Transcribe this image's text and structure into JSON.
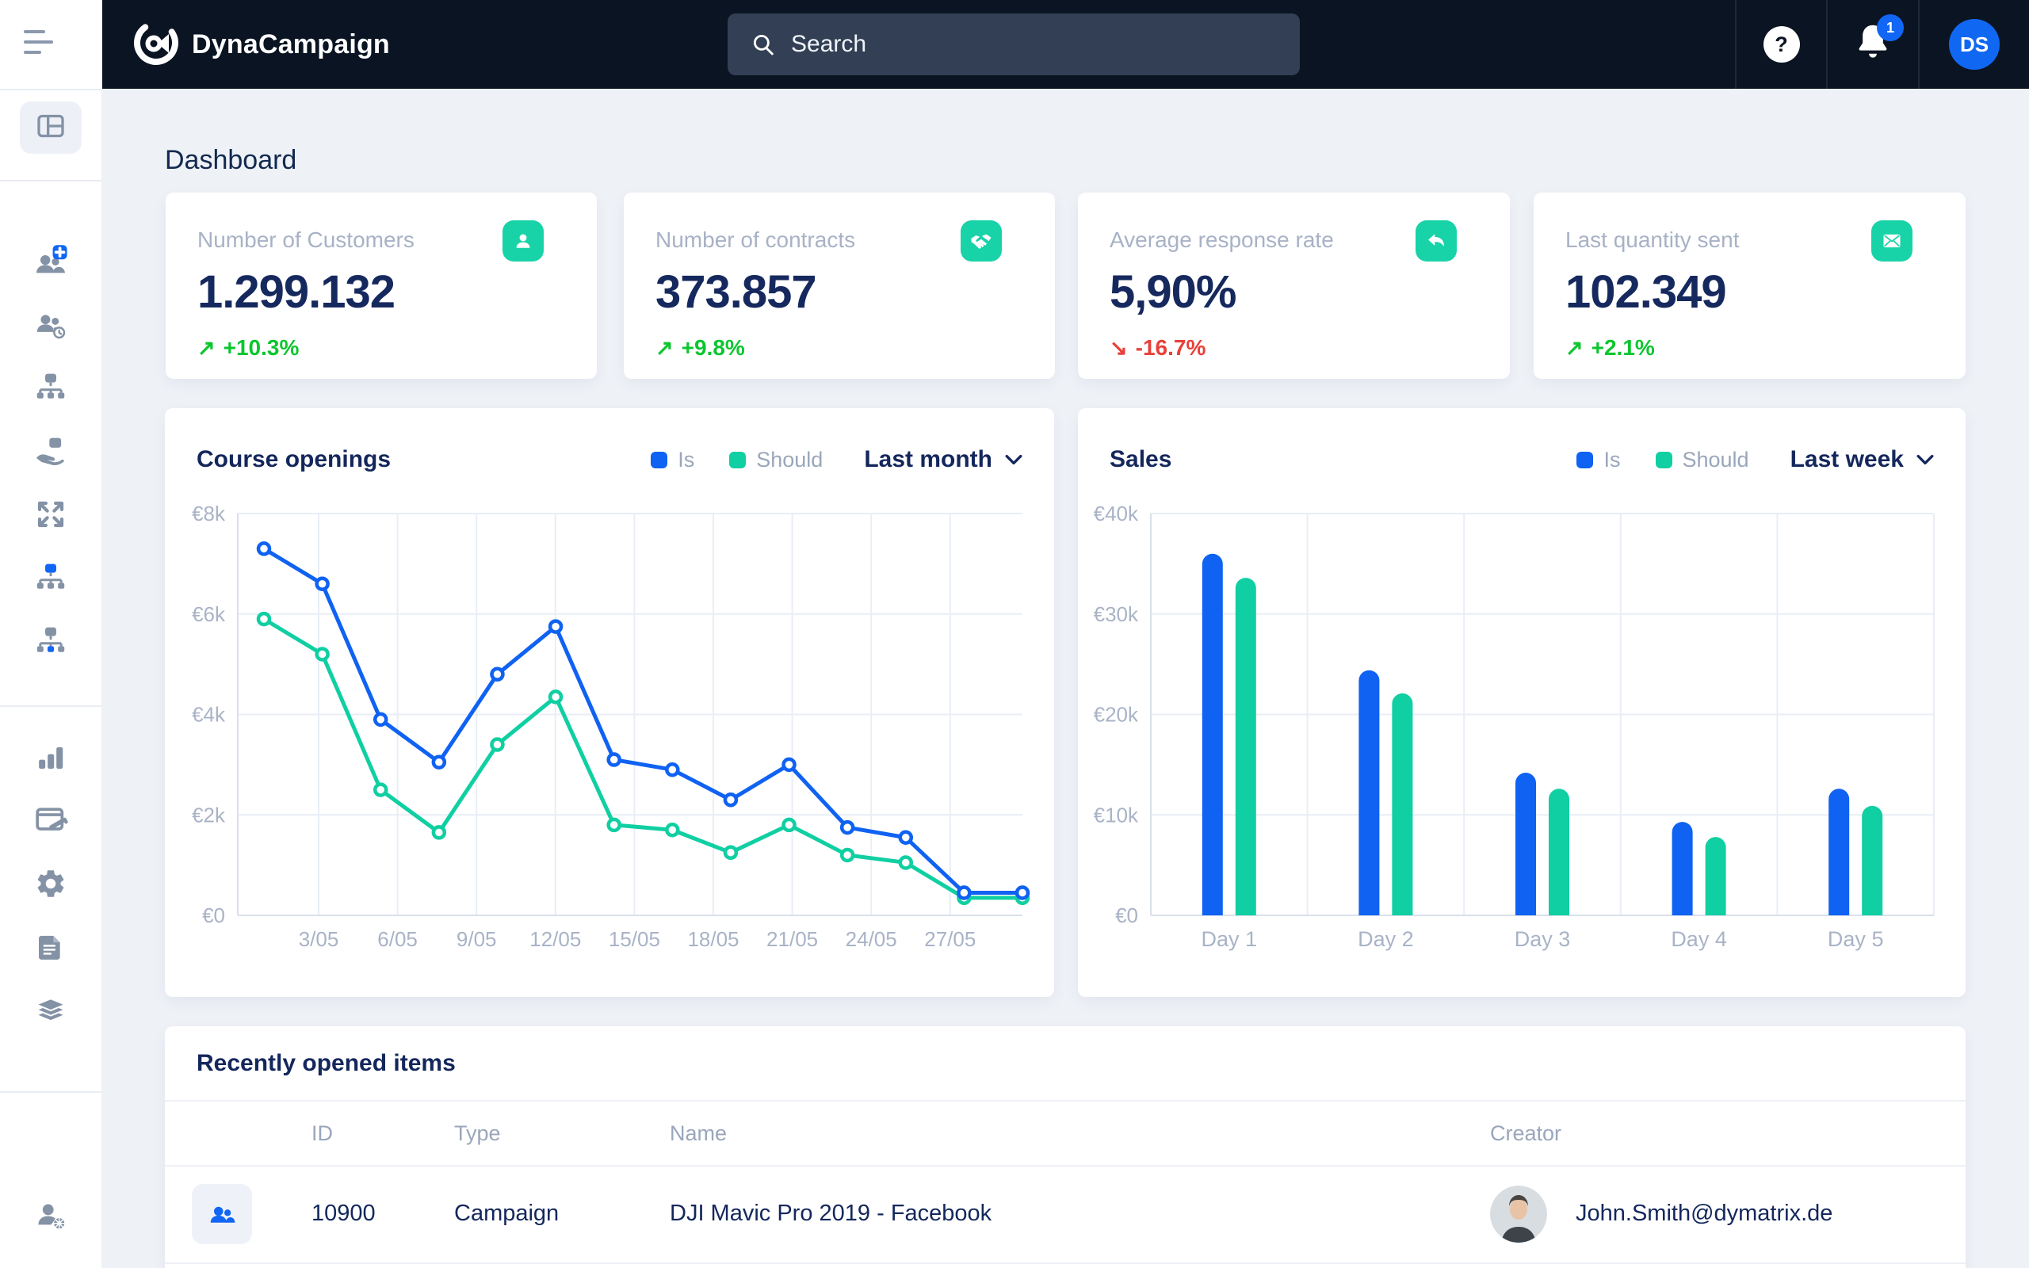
{
  "navbar": {
    "brand": "DynaCampaign",
    "search_placeholder": "Search",
    "help_label": "?",
    "notification_count": "1",
    "avatar_initials": "DS"
  },
  "sidebar": {
    "items": [
      "menu-toggle",
      "dashboard",
      "add-customers",
      "customer-history",
      "org-structure",
      "hand-over",
      "expand",
      "hierarchy-top-active",
      "hierarchy-bottom-active",
      "statistics",
      "notes",
      "settings",
      "documents",
      "layers",
      "user-admin"
    ]
  },
  "page_title": "Dashboard",
  "stat_cards": [
    {
      "label": "Number of Customers",
      "value": "1.299.132",
      "delta": "+10.3%",
      "trend": "up",
      "arrow": "↗",
      "icon": "user-icon"
    },
    {
      "label": "Number of contracts",
      "value": "373.857",
      "delta": "+9.8%",
      "trend": "up",
      "arrow": "↗",
      "icon": "handshake-icon"
    },
    {
      "label": "Average response rate",
      "value": "5,90%",
      "delta": "-16.7%",
      "trend": "down",
      "arrow": "↘",
      "icon": "reply-icon"
    },
    {
      "label": "Last quantity sent",
      "value": "102.349",
      "delta": "+2.1%",
      "trend": "up",
      "arrow": "↗",
      "icon": "envelope-icon"
    }
  ],
  "charts": [
    {
      "title": "Course openings",
      "legend": [
        {
          "label": "Is",
          "color": "#0f62f2"
        },
        {
          "label": "Should",
          "color": "#10cfa2"
        }
      ],
      "range_label": "Last month"
    },
    {
      "title": "Sales",
      "legend": [
        {
          "label": "Is",
          "color": "#0f62f2"
        },
        {
          "label": "Should",
          "color": "#10cfa2"
        }
      ],
      "range_label": "Last week"
    }
  ],
  "chart_data": [
    {
      "type": "line",
      "title": "Course openings",
      "x_tick_labels": [
        "3/05",
        "6/05",
        "9/05",
        "12/05",
        "15/05",
        "18/05",
        "21/05",
        "24/05",
        "27/05"
      ],
      "y_ticks": [
        "€0",
        "€2k",
        "€4k",
        "€6k",
        "€8k"
      ],
      "ylim": [
        0,
        8000
      ],
      "grid": true,
      "legend_position": "top-right",
      "series": [
        {
          "name": "Is",
          "color": "#0f62f2",
          "values": [
            7300,
            6600,
            3900,
            3050,
            4800,
            5750,
            3100,
            2900,
            2300,
            3000,
            1750,
            1550,
            450,
            450
          ]
        },
        {
          "name": "Should",
          "color": "#10cfa2",
          "values": [
            5900,
            5200,
            2500,
            1650,
            3400,
            4350,
            1800,
            1700,
            1250,
            1800,
            1200,
            1050,
            350,
            350
          ]
        }
      ]
    },
    {
      "type": "bar",
      "title": "Sales",
      "categories": [
        "Day 1",
        "Day 2",
        "Day 3",
        "Day 4",
        "Day 5"
      ],
      "y_ticks": [
        "€0",
        "€10k",
        "€20k",
        "€30k",
        "€40k"
      ],
      "ylim": [
        0,
        40000
      ],
      "grid": true,
      "legend_position": "top-right",
      "series": [
        {
          "name": "Is",
          "color": "#0f62f2",
          "values": [
            36000,
            24400,
            14200,
            9300,
            12600
          ]
        },
        {
          "name": "Should",
          "color": "#10cfa2",
          "values": [
            33600,
            22100,
            12600,
            7800,
            10900
          ]
        }
      ]
    }
  ],
  "table": {
    "title": "Recently opened items",
    "columns": [
      "ID",
      "Type",
      "Name",
      "Creator"
    ],
    "rows": [
      {
        "id": "10900",
        "type": "Campaign",
        "name": "DJI Mavic Pro 2019 - Facebook",
        "creator": "John.Smith@dymatrix.de",
        "icon": "users-icon"
      }
    ]
  },
  "colors": {
    "navbar_bg": "#0a1422",
    "accent_blue": "#0f62f2",
    "accent_teal": "#12d0a4",
    "positive_green": "#0cc62e",
    "negative_red": "#e8403a",
    "dark_text": "#14275c",
    "label_gray": "#9aa6bb"
  }
}
